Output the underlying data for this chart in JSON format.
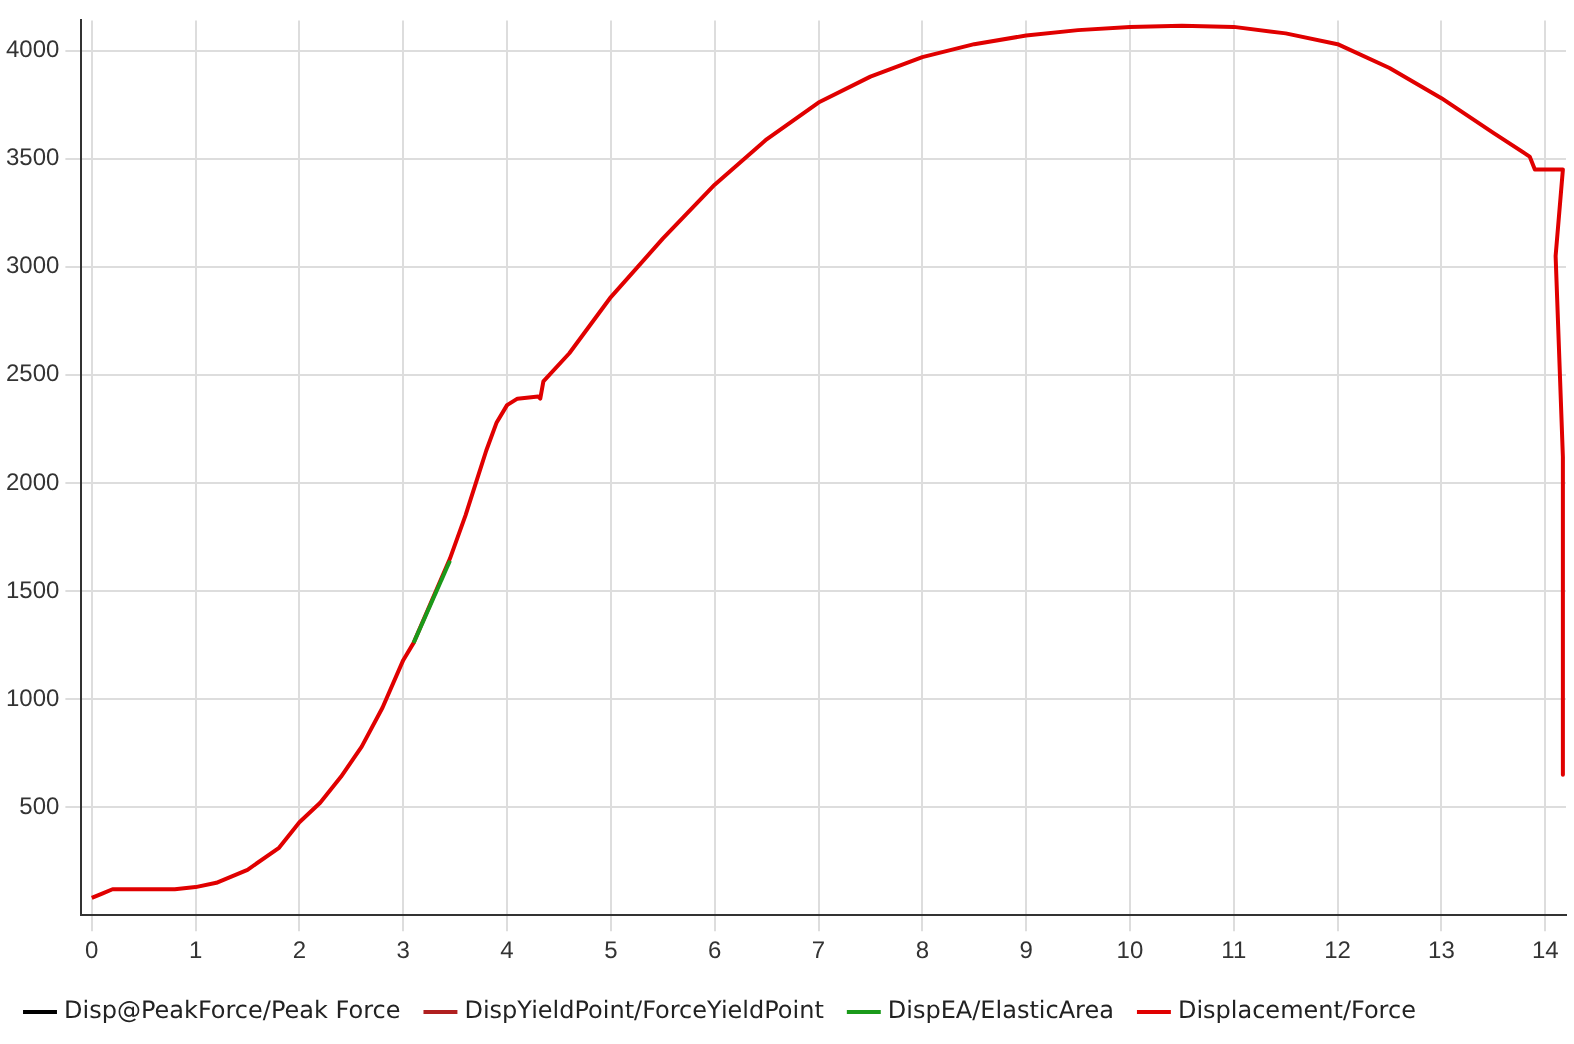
{
  "chart_data": {
    "type": "line",
    "xlim": [
      -0.1,
      14.2
    ],
    "xticks": [
      0,
      1,
      2,
      3,
      4,
      5,
      6,
      7,
      8,
      9,
      10,
      11,
      12,
      13,
      14
    ],
    "ylim": [
      0,
      4140
    ],
    "yticks": [
      500,
      1000,
      1500,
      2000,
      2500,
      3000,
      3500,
      4000
    ],
    "grid": true,
    "legend": "bottom",
    "marker": "none",
    "line_style": "solid",
    "series": [
      {
        "name": "Displacement/Force",
        "color": "#e00000",
        "x": [
          0,
          0.1,
          0.2,
          0.5,
          0.8,
          1.0,
          1.2,
          1.5,
          1.8,
          2.0,
          2.2,
          2.4,
          2.6,
          2.8,
          3.0,
          3.1,
          3.45,
          3.6,
          3.7,
          3.8,
          3.9,
          4.0,
          4.1,
          4.3,
          4.32,
          4.35,
          4.6,
          5.0,
          5.5,
          6.0,
          6.5,
          7.0,
          7.5,
          8.0,
          8.5,
          9.0,
          9.5,
          10.0,
          10.5,
          11.0,
          11.5,
          12.0,
          12.5,
          13.0,
          13.5,
          13.85,
          13.9,
          14.17,
          14.1,
          14.17,
          14.17
        ],
        "values": [
          80,
          100,
          120,
          120,
          120,
          130,
          150,
          210,
          310,
          430,
          520,
          640,
          780,
          960,
          1180,
          1260,
          1650,
          1850,
          2000,
          2150,
          2280,
          2360,
          2390,
          2400,
          2390,
          2470,
          2600,
          2860,
          3130,
          3380,
          3590,
          3760,
          3880,
          3970,
          4030,
          4070,
          4095,
          4110,
          4115,
          4110,
          4080,
          4030,
          3920,
          3780,
          3620,
          3510,
          3450,
          3450,
          3050,
          2120,
          650
        ]
      },
      {
        "name": "DispEA/ElasticArea",
        "color": "#1a9a1a",
        "x": [
          3.1,
          3.45
        ],
        "values": [
          1260,
          1640
        ]
      },
      {
        "name": "DispYieldPoint/ForceYieldPoint",
        "color": "#b02020"
      },
      {
        "name": "Disp@PeakForce/Peak Force",
        "color": "#000000"
      }
    ]
  }
}
